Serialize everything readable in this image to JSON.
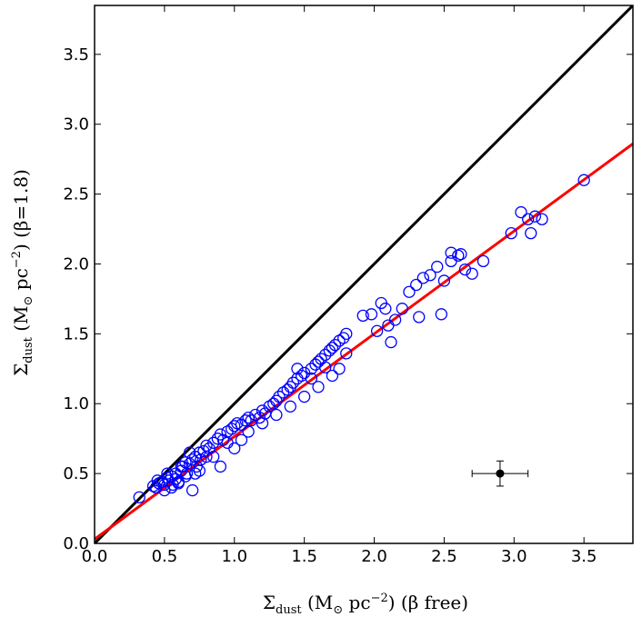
{
  "chart_data": {
    "type": "scatter",
    "title": "",
    "xlabel": {
      "symbol": "Σ",
      "sub": "dust",
      "open": " (M",
      "sun": "⊙",
      "unit": " pc",
      "exp": "−2",
      "close": ") ",
      "note": "(β free)"
    },
    "ylabel": {
      "symbol": "Σ",
      "sub": "dust",
      "open": " (M",
      "sun": "⊙",
      "unit": " pc",
      "exp": "−2",
      "close": ") ",
      "note": "(β=1.8)"
    },
    "xlim": [
      0.0,
      3.85
    ],
    "ylim": [
      0.0,
      3.85
    ],
    "xticks": [
      "0.0",
      "0.5",
      "1.0",
      "1.5",
      "2.0",
      "2.5",
      "3.0",
      "3.5"
    ],
    "yticks": [
      "0.0",
      "0.5",
      "1.0",
      "1.5",
      "2.0",
      "2.5",
      "3.0",
      "3.5"
    ],
    "grid": false,
    "one_to_one_line": {
      "x": [
        0.0,
        3.85
      ],
      "y": [
        0.0,
        3.85
      ],
      "color": "#000000"
    },
    "fit_line": {
      "x": [
        0.0,
        3.85
      ],
      "y": [
        0.03,
        2.86
      ],
      "color": "#ff0000"
    },
    "marker_color": "#0000ff",
    "error_bar": {
      "x": 2.9,
      "y": 0.5,
      "xerr": 0.2,
      "yerr": 0.09
    },
    "points": {
      "x": [
        0.32,
        0.42,
        0.44,
        0.46,
        0.48,
        0.5,
        0.52,
        0.53,
        0.55,
        0.56,
        0.58,
        0.6,
        0.62,
        0.63,
        0.65,
        0.66,
        0.68,
        0.7,
        0.72,
        0.73,
        0.75,
        0.76,
        0.78,
        0.8,
        0.82,
        0.85,
        0.88,
        0.9,
        0.92,
        0.95,
        0.98,
        1.0,
        1.02,
        1.05,
        1.08,
        1.1,
        1.12,
        1.15,
        1.18,
        1.2,
        1.22,
        1.25,
        1.28,
        1.3,
        1.32,
        1.35,
        1.38,
        1.4,
        1.42,
        1.45,
        1.48,
        1.5,
        1.55,
        1.58,
        1.6,
        1.62,
        1.65,
        1.68,
        1.7,
        1.72,
        1.75,
        1.78,
        1.8,
        1.92,
        1.98,
        2.02,
        2.05,
        2.08,
        2.1,
        2.12,
        2.15,
        2.2,
        2.25,
        2.3,
        2.35,
        2.4,
        2.45,
        2.5,
        2.55,
        2.6,
        2.65,
        2.7,
        2.78,
        2.98,
        3.05,
        3.1,
        3.12,
        3.15,
        3.2,
        3.5,
        0.5,
        0.55,
        0.6,
        0.65,
        0.7,
        0.72,
        0.75,
        0.8,
        0.9,
        1.0,
        1.05,
        1.1,
        1.2,
        1.3,
        1.4,
        1.5,
        1.6,
        1.7,
        1.75,
        0.45,
        0.52,
        0.58,
        0.62,
        0.68,
        2.32,
        2.48,
        2.55,
        2.62,
        1.45,
        1.55,
        1.65,
        1.8,
        0.85,
        0.95
      ],
      "y": [
        0.33,
        0.41,
        0.4,
        0.43,
        0.44,
        0.42,
        0.47,
        0.45,
        0.48,
        0.42,
        0.5,
        0.44,
        0.52,
        0.55,
        0.58,
        0.5,
        0.57,
        0.6,
        0.62,
        0.55,
        0.65,
        0.6,
        0.66,
        0.7,
        0.68,
        0.72,
        0.75,
        0.78,
        0.74,
        0.8,
        0.82,
        0.84,
        0.86,
        0.85,
        0.88,
        0.9,
        0.88,
        0.92,
        0.9,
        0.95,
        0.93,
        0.98,
        1.0,
        1.02,
        1.05,
        1.08,
        1.1,
        1.12,
        1.15,
        1.18,
        1.2,
        1.22,
        1.25,
        1.28,
        1.3,
        1.32,
        1.35,
        1.38,
        1.4,
        1.42,
        1.45,
        1.47,
        1.5,
        1.63,
        1.64,
        1.52,
        1.72,
        1.68,
        1.56,
        1.44,
        1.6,
        1.68,
        1.8,
        1.85,
        1.9,
        1.92,
        1.98,
        1.88,
        2.02,
        2.06,
        1.96,
        1.93,
        2.02,
        2.22,
        2.37,
        2.32,
        2.22,
        2.34,
        2.32,
        2.6,
        0.38,
        0.4,
        0.43,
        0.48,
        0.38,
        0.5,
        0.52,
        0.62,
        0.55,
        0.68,
        0.74,
        0.8,
        0.86,
        0.92,
        0.98,
        1.05,
        1.12,
        1.2,
        1.25,
        0.45,
        0.5,
        0.46,
        0.55,
        0.65,
        1.62,
        1.64,
        2.08,
        2.07,
        1.25,
        1.18,
        1.26,
        1.36,
        0.62,
        0.72
      ]
    }
  }
}
